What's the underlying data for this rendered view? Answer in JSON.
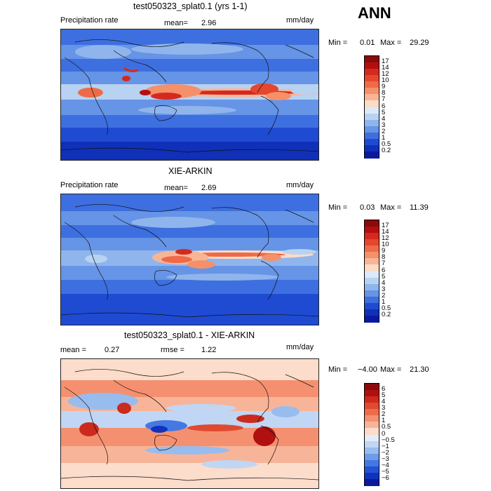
{
  "season_label": "ANN",
  "chart_data": [
    {
      "type": "heatmap",
      "title": "test050323_splat0.1 (yrs 1-1)",
      "variable": "Precipitation rate",
      "mean_label": "mean=",
      "mean_value": "2.96",
      "units": "mm/day",
      "min_label": "Min =",
      "min_value": "0.01",
      "max_label": "Max =",
      "max_value": "29.29",
      "levels": [
        "17",
        "14",
        "12",
        "10",
        "9",
        "8",
        "7",
        "6",
        "5",
        "4",
        "3",
        "2",
        "1",
        "0.5",
        "0.2"
      ],
      "colors": [
        "#8b0a0a",
        "#b40f0f",
        "#d42a1e",
        "#e5462e",
        "#ef6a48",
        "#f5906a",
        "#f8b596",
        "#fbdcc6",
        "#dce9f8",
        "#b8d2f2",
        "#8fb5ec",
        "#6694e6",
        "#3e6fe0",
        "#1f4bd2",
        "#1030b8",
        "#0a1aa0"
      ]
    },
    {
      "type": "heatmap",
      "title": "XIE-ARKIN",
      "variable": "Precipitation rate",
      "mean_label": "mean=",
      "mean_value": "2.69",
      "units": "mm/day",
      "min_label": "Min =",
      "min_value": "0.03",
      "max_label": "Max =",
      "max_value": "11.39",
      "levels": [
        "17",
        "14",
        "12",
        "10",
        "9",
        "8",
        "7",
        "6",
        "5",
        "4",
        "3",
        "2",
        "1",
        "0.5",
        "0.2"
      ],
      "colors": [
        "#8b0a0a",
        "#b40f0f",
        "#d42a1e",
        "#e5462e",
        "#ef6a48",
        "#f5906a",
        "#f8b596",
        "#fbdcc6",
        "#dce9f8",
        "#b8d2f2",
        "#8fb5ec",
        "#6694e6",
        "#3e6fe0",
        "#1f4bd2",
        "#1030b8",
        "#0a1aa0"
      ]
    },
    {
      "type": "heatmap",
      "title": "test050323_splat0.1 - XIE-ARKIN",
      "mean_label": "mean =",
      "mean_value": "0.27",
      "rmse_label": "rmse =",
      "rmse_value": "1.22",
      "units": "mm/day",
      "min_label": "Min =",
      "min_value": "−4.00",
      "max_label": "Max =",
      "max_value": "21.30",
      "levels": [
        "6",
        "5",
        "4",
        "3",
        "2",
        "1",
        "0.5",
        "0",
        "−0.5",
        "−1",
        "−2",
        "−3",
        "−4",
        "−5",
        "−6"
      ],
      "colors": [
        "#8b0a0a",
        "#b01010",
        "#cc2a1c",
        "#e04a30",
        "#ec6c4c",
        "#f49070",
        "#f8b498",
        "#fcdcca",
        "#e2ecfa",
        "#c0d6f4",
        "#98bcee",
        "#6e9ce8",
        "#4478e2",
        "#2452d6",
        "#1232be",
        "#0a1aa0"
      ]
    }
  ]
}
